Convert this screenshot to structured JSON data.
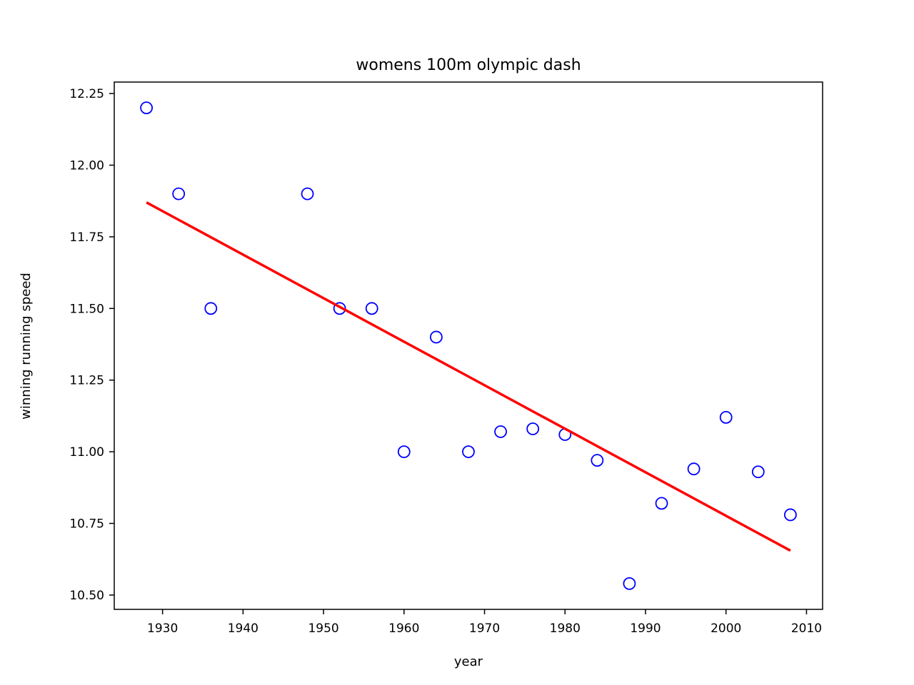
{
  "chart_data": {
    "type": "scatter",
    "title": "womens 100m olympic dash",
    "xlabel": "year",
    "ylabel": "winning running speed",
    "xlim": [
      1924,
      2012
    ],
    "ylim": [
      10.45,
      12.29
    ],
    "xticks": [
      1930,
      1940,
      1950,
      1960,
      1970,
      1980,
      1990,
      2000,
      2010
    ],
    "yticks": [
      10.5,
      10.75,
      11.0,
      11.25,
      11.5,
      11.75,
      12.0,
      12.25
    ],
    "ytick_labels": [
      "10.50",
      "10.75",
      "11.00",
      "11.25",
      "11.50",
      "11.75",
      "12.00",
      "12.25"
    ],
    "grid": false,
    "points": [
      {
        "x": 1928,
        "y": 12.2
      },
      {
        "x": 1932,
        "y": 11.9
      },
      {
        "x": 1936,
        "y": 11.5
      },
      {
        "x": 1948,
        "y": 11.9
      },
      {
        "x": 1952,
        "y": 11.5
      },
      {
        "x": 1956,
        "y": 11.5
      },
      {
        "x": 1960,
        "y": 11.0
      },
      {
        "x": 1964,
        "y": 11.4
      },
      {
        "x": 1968,
        "y": 11.0
      },
      {
        "x": 1972,
        "y": 11.07
      },
      {
        "x": 1976,
        "y": 11.08
      },
      {
        "x": 1980,
        "y": 11.06
      },
      {
        "x": 1984,
        "y": 10.97
      },
      {
        "x": 1988,
        "y": 10.54
      },
      {
        "x": 1992,
        "y": 10.82
      },
      {
        "x": 1996,
        "y": 10.94
      },
      {
        "x": 2000,
        "y": 11.12
      },
      {
        "x": 2004,
        "y": 10.93
      },
      {
        "x": 2008,
        "y": 10.78
      }
    ],
    "fit_line": {
      "x": [
        1928,
        2008
      ],
      "y": [
        11.87,
        10.655
      ]
    },
    "colors": {
      "points": "#0000ff",
      "fit_line": "#ff0000",
      "axes": "#000000"
    }
  }
}
